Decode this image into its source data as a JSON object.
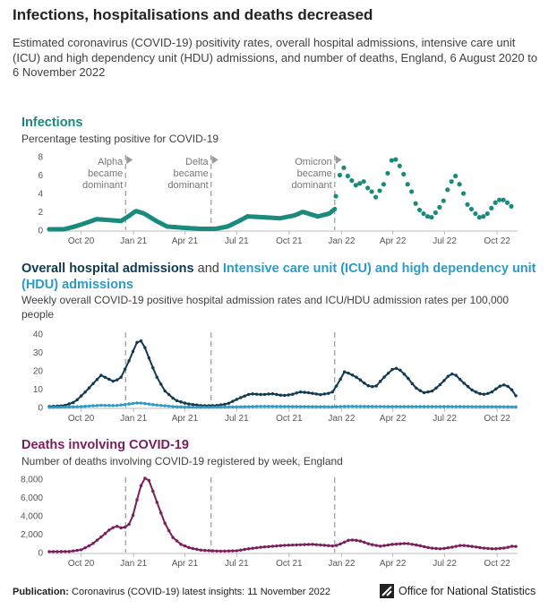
{
  "title": "Infections, hospitalisations and deaths decreased",
  "subtitle": "Estimated coronavirus (COVID-19) positivity rates, overall hospital admissions, intensive care unit (ICU) and high dependency unit (HDU) admissions, and number of deaths, England, 6 August 2020 to 6 November 2022",
  "footer": {
    "label": "Publication:",
    "text": "Coronavirus (COVID-19) latest insights: 11 November 2022"
  },
  "logo": {
    "text": "Office for National Statistics"
  },
  "colors": {
    "infections": "#1a8a7c",
    "hospital": "#0f3a52",
    "icu": "#2b9bc7",
    "deaths": "#7b1e5c",
    "axis": "#bbbbbb",
    "marker": "#999999"
  },
  "panels": {
    "infections": {
      "title": "Infections",
      "subtitle": "Percentage testing positive for COVID-19"
    },
    "hospital": {
      "title_a": "Overall hospital admissions",
      "title_and": "and",
      "title_b": "Intensive care unit (ICU) and high dependency unit (HDU) admissions",
      "subtitle": "Weekly overall COVID-19 positive hospital admission rates and ICU/HDU admission rates per 100,000 people"
    },
    "deaths": {
      "title": "Deaths involving COVID-19",
      "subtitle": "Number of deaths involving COVID-19 registered by week, England"
    }
  },
  "chart_data": [
    {
      "type": "scatter",
      "title": "Infections",
      "ylabel": "Percentage testing positive for COVID-19",
      "xlim": [
        "2020-08-06",
        "2022-11-06"
      ],
      "ylim": [
        0,
        8
      ],
      "yticks": [
        0,
        2,
        4,
        6,
        8
      ],
      "x_tick_labels": [
        "Oct 20",
        "Jan 21",
        "Apr 21",
        "Jul 21",
        "Oct 21",
        "Jan 22",
        "Apr 22",
        "Jul 22",
        "Oct 22"
      ],
      "x_tick_dates": [
        "2020-10-01",
        "2021-01-01",
        "2021-04-01",
        "2021-07-01",
        "2021-10-01",
        "2022-01-01",
        "2022-04-01",
        "2022-07-01",
        "2022-10-01"
      ],
      "annotations": [
        {
          "date": "2020-12-18",
          "lines": [
            "Alpha",
            "became",
            "dominant"
          ]
        },
        {
          "date": "2021-05-17",
          "lines": [
            "Delta",
            "became",
            "dominant"
          ]
        },
        {
          "date": "2021-12-20",
          "lines": [
            "Omicron",
            "became",
            "dominant"
          ]
        }
      ],
      "series": [
        {
          "dense": true,
          "points": [
            [
              "2020-08-06",
              0.1
            ],
            [
              "2020-09-01",
              0.1
            ],
            [
              "2020-09-20",
              0.4
            ],
            [
              "2020-10-10",
              0.8
            ],
            [
              "2020-10-28",
              1.2
            ],
            [
              "2020-11-20",
              1.1
            ],
            [
              "2020-12-10",
              1.0
            ],
            [
              "2020-12-25",
              1.6
            ],
            [
              "2021-01-05",
              2.1
            ],
            [
              "2021-01-20",
              1.8
            ],
            [
              "2021-02-10",
              1.0
            ],
            [
              "2021-03-01",
              0.4
            ],
            [
              "2021-04-01",
              0.25
            ],
            [
              "2021-05-01",
              0.15
            ],
            [
              "2021-05-25",
              0.15
            ],
            [
              "2021-06-15",
              0.4
            ],
            [
              "2021-07-05",
              1.0
            ],
            [
              "2021-07-20",
              1.5
            ],
            [
              "2021-08-20",
              1.4
            ],
            [
              "2021-09-15",
              1.3
            ],
            [
              "2021-10-10",
              1.6
            ],
            [
              "2021-10-25",
              2.0
            ],
            [
              "2021-11-20",
              1.5
            ],
            [
              "2021-12-10",
              1.8
            ],
            [
              "2021-12-20",
              2.3
            ]
          ]
        },
        {
          "dense": false,
          "points": [
            [
              "2021-12-22",
              3.7
            ],
            [
              "2021-12-29",
              6.0
            ],
            [
              "2022-01-05",
              6.8
            ],
            [
              "2022-01-12",
              5.9
            ],
            [
              "2022-01-19",
              5.4
            ],
            [
              "2022-01-26",
              4.9
            ],
            [
              "2022-02-02",
              5.1
            ],
            [
              "2022-02-09",
              5.3
            ],
            [
              "2022-02-16",
              4.6
            ],
            [
              "2022-02-23",
              4.2
            ],
            [
              "2022-03-02",
              3.6
            ],
            [
              "2022-03-09",
              4.3
            ],
            [
              "2022-03-16",
              5.0
            ],
            [
              "2022-03-23",
              6.2
            ],
            [
              "2022-03-30",
              7.6
            ],
            [
              "2022-04-06",
              7.7
            ],
            [
              "2022-04-13",
              7.0
            ],
            [
              "2022-04-20",
              6.1
            ],
            [
              "2022-04-27",
              5.0
            ],
            [
              "2022-05-04",
              4.2
            ],
            [
              "2022-05-11",
              2.9
            ],
            [
              "2022-05-18",
              2.2
            ],
            [
              "2022-05-25",
              1.8
            ],
            [
              "2022-06-01",
              1.5
            ],
            [
              "2022-06-08",
              1.4
            ],
            [
              "2022-06-15",
              1.9
            ],
            [
              "2022-06-22",
              2.5
            ],
            [
              "2022-06-29",
              3.2
            ],
            [
              "2022-07-06",
              4.4
            ],
            [
              "2022-07-13",
              5.3
            ],
            [
              "2022-07-20",
              5.9
            ],
            [
              "2022-07-27",
              5.0
            ],
            [
              "2022-08-03",
              4.0
            ],
            [
              "2022-08-10",
              2.8
            ],
            [
              "2022-08-17",
              2.3
            ],
            [
              "2022-08-24",
              1.8
            ],
            [
              "2022-08-31",
              1.4
            ],
            [
              "2022-09-07",
              1.5
            ],
            [
              "2022-09-14",
              1.8
            ],
            [
              "2022-09-21",
              2.4
            ],
            [
              "2022-09-28",
              3.0
            ],
            [
              "2022-10-05",
              3.3
            ],
            [
              "2022-10-12",
              3.3
            ],
            [
              "2022-10-19",
              3.0
            ],
            [
              "2022-10-26",
              2.6
            ]
          ]
        }
      ]
    },
    {
      "type": "line",
      "title": "Overall hospital admissions and Intensive care unit (ICU) and high dependency unit (HDU) admissions",
      "ylabel": "Weekly overall COVID-19 positive hospital admission rates and ICU/HDU admission rates per 100,000 people",
      "xlim": [
        "2020-08-06",
        "2022-11-06"
      ],
      "ylim": [
        0,
        40
      ],
      "yticks": [
        0,
        10,
        20,
        30,
        40
      ],
      "x_tick_labels": [
        "Oct 20",
        "Jan 21",
        "Apr 21",
        "Jul 21",
        "Oct 21",
        "Jan 22",
        "Apr 22",
        "Jul 22",
        "Oct 22"
      ],
      "x_tick_dates": [
        "2020-10-01",
        "2021-01-01",
        "2021-04-01",
        "2021-07-01",
        "2021-10-01",
        "2022-01-01",
        "2022-04-01",
        "2022-07-01",
        "2022-10-01"
      ],
      "markers": [
        "2020-12-18",
        "2021-05-17",
        "2021-12-20"
      ],
      "series": [
        {
          "name": "Overall hospital admissions",
          "points": [
            [
              "2020-08-06",
              0.5
            ],
            [
              "2020-09-01",
              1.0
            ],
            [
              "2020-09-20",
              3.0
            ],
            [
              "2020-10-10",
              9.0
            ],
            [
              "2020-10-25",
              14.0
            ],
            [
              "2020-11-05",
              17.5
            ],
            [
              "2020-11-15",
              16.0
            ],
            [
              "2020-11-28",
              14.0
            ],
            [
              "2020-12-10",
              16.5
            ],
            [
              "2020-12-22",
              24.0
            ],
            [
              "2021-01-02",
              32.0
            ],
            [
              "2021-01-10",
              37.5
            ],
            [
              "2021-01-18",
              35.0
            ],
            [
              "2021-01-28",
              27.0
            ],
            [
              "2021-02-10",
              17.0
            ],
            [
              "2021-02-25",
              9.0
            ],
            [
              "2021-03-15",
              4.0
            ],
            [
              "2021-04-05",
              2.0
            ],
            [
              "2021-05-01",
              1.0
            ],
            [
              "2021-05-25",
              1.0
            ],
            [
              "2021-06-15",
              2.0
            ],
            [
              "2021-07-05",
              5.0
            ],
            [
              "2021-07-25",
              7.5
            ],
            [
              "2021-08-15",
              7.0
            ],
            [
              "2021-09-01",
              7.5
            ],
            [
              "2021-09-20",
              6.5
            ],
            [
              "2021-10-05",
              7.0
            ],
            [
              "2021-10-20",
              8.5
            ],
            [
              "2021-11-05",
              8.0
            ],
            [
              "2021-11-25",
              7.0
            ],
            [
              "2021-12-15",
              8.0
            ],
            [
              "2021-12-28",
              14.0
            ],
            [
              "2022-01-05",
              19.5
            ],
            [
              "2022-01-15",
              18.5
            ],
            [
              "2022-01-30",
              16.0
            ],
            [
              "2022-02-15",
              12.0
            ],
            [
              "2022-03-01",
              11.0
            ],
            [
              "2022-03-15",
              16.0
            ],
            [
              "2022-04-01",
              21.0
            ],
            [
              "2022-04-10",
              21.5
            ],
            [
              "2022-04-25",
              17.0
            ],
            [
              "2022-05-10",
              11.0
            ],
            [
              "2022-05-25",
              8.0
            ],
            [
              "2022-06-10",
              9.0
            ],
            [
              "2022-06-25",
              13.0
            ],
            [
              "2022-07-10",
              18.0
            ],
            [
              "2022-07-18",
              18.5
            ],
            [
              "2022-08-01",
              14.0
            ],
            [
              "2022-08-20",
              9.0
            ],
            [
              "2022-09-05",
              7.0
            ],
            [
              "2022-09-20",
              8.0
            ],
            [
              "2022-10-05",
              11.5
            ],
            [
              "2022-10-15",
              12.5
            ],
            [
              "2022-10-25",
              10.5
            ],
            [
              "2022-11-06",
              5.0
            ]
          ]
        },
        {
          "name": "Intensive care unit (ICU) and high dependency unit (HDU) admissions",
          "points": [
            [
              "2020-08-06",
              0.05
            ],
            [
              "2020-10-01",
              0.5
            ],
            [
              "2020-11-05",
              1.2
            ],
            [
              "2020-12-01",
              1.0
            ],
            [
              "2021-01-10",
              2.6
            ],
            [
              "2021-02-05",
              1.5
            ],
            [
              "2021-03-15",
              0.4
            ],
            [
              "2021-05-01",
              0.1
            ],
            [
              "2021-07-10",
              0.4
            ],
            [
              "2021-08-15",
              0.6
            ],
            [
              "2021-10-15",
              0.5
            ],
            [
              "2021-12-15",
              0.4
            ],
            [
              "2022-01-10",
              0.6
            ],
            [
              "2022-04-01",
              0.5
            ],
            [
              "2022-07-15",
              0.5
            ],
            [
              "2022-10-15",
              0.4
            ],
            [
              "2022-11-06",
              0.3
            ]
          ]
        }
      ]
    },
    {
      "type": "line",
      "title": "Deaths involving COVID-19",
      "ylabel": "Number of deaths involving COVID-19 registered by week, England",
      "xlim": [
        "2020-08-06",
        "2022-11-06"
      ],
      "ylim": [
        0,
        8000
      ],
      "yticks": [
        0,
        2000,
        4000,
        6000,
        8000
      ],
      "ytick_labels": [
        "0",
        "2,000",
        "4,000",
        "6,000",
        "8,000"
      ],
      "x_tick_labels": [
        "Oct 20",
        "Jan 21",
        "Apr 21",
        "Jul 21",
        "Oct 21",
        "Jan 22",
        "Apr 22",
        "Jul 22",
        "Oct 22"
      ],
      "x_tick_dates": [
        "2020-10-01",
        "2021-01-01",
        "2021-04-01",
        "2021-07-01",
        "2021-10-01",
        "2022-01-01",
        "2022-04-01",
        "2022-07-01",
        "2022-10-01"
      ],
      "markers": [
        "2020-12-18",
        "2021-05-17",
        "2021-12-20"
      ],
      "series": [
        {
          "name": "Deaths involving COVID-19",
          "points": [
            [
              "2020-08-06",
              100
            ],
            [
              "2020-09-10",
              120
            ],
            [
              "2020-10-01",
              300
            ],
            [
              "2020-10-20",
              900
            ],
            [
              "2020-11-05",
              1700
            ],
            [
              "2020-11-20",
              2500
            ],
            [
              "2020-12-01",
              2900
            ],
            [
              "2020-12-10",
              2700
            ],
            [
              "2020-12-22",
              2800
            ],
            [
              "2021-01-01",
              4200
            ],
            [
              "2021-01-08",
              6000
            ],
            [
              "2021-01-15",
              7500
            ],
            [
              "2021-01-22",
              8200
            ],
            [
              "2021-01-29",
              7800
            ],
            [
              "2021-02-05",
              6500
            ],
            [
              "2021-02-15",
              4800
            ],
            [
              "2021-02-25",
              3200
            ],
            [
              "2021-03-10",
              1700
            ],
            [
              "2021-03-25",
              900
            ],
            [
              "2021-04-10",
              500
            ],
            [
              "2021-05-01",
              250
            ],
            [
              "2021-06-01",
              150
            ],
            [
              "2021-07-01",
              200
            ],
            [
              "2021-07-20",
              400
            ],
            [
              "2021-08-15",
              600
            ],
            [
              "2021-09-05",
              700
            ],
            [
              "2021-09-25",
              800
            ],
            [
              "2021-10-20",
              850
            ],
            [
              "2021-11-10",
              900
            ],
            [
              "2021-12-01",
              800
            ],
            [
              "2021-12-20",
              700
            ],
            [
              "2022-01-05",
              1100
            ],
            [
              "2022-01-15",
              1400
            ],
            [
              "2022-02-01",
              1300
            ],
            [
              "2022-02-20",
              900
            ],
            [
              "2022-03-10",
              700
            ],
            [
              "2022-04-01",
              900
            ],
            [
              "2022-04-25",
              1000
            ],
            [
              "2022-05-15",
              800
            ],
            [
              "2022-06-05",
              500
            ],
            [
              "2022-06-25",
              400
            ],
            [
              "2022-07-15",
              600
            ],
            [
              "2022-07-30",
              800
            ],
            [
              "2022-08-15",
              700
            ],
            [
              "2022-09-05",
              500
            ],
            [
              "2022-09-25",
              400
            ],
            [
              "2022-10-15",
              500
            ],
            [
              "2022-10-28",
              700
            ],
            [
              "2022-11-06",
              650
            ]
          ]
        }
      ]
    }
  ]
}
